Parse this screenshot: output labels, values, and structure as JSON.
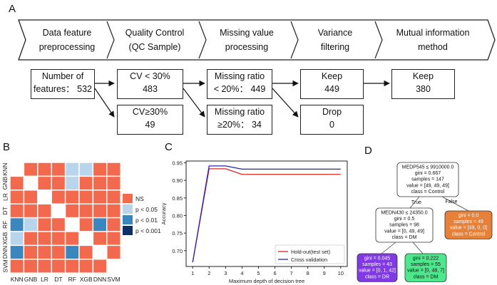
{
  "panel_labels": {
    "a": "A",
    "b": "B",
    "c": "C",
    "d": "D"
  },
  "panel_a": {
    "steps": [
      {
        "line1": "Data feature",
        "line2": "preprocessing"
      },
      {
        "line1": "Quality Control",
        "line2": "(QC Sample)"
      },
      {
        "line1": "Missing value",
        "line2": "processing"
      },
      {
        "line1": "Variance",
        "line2": "filtering"
      },
      {
        "line1": "Mutual information",
        "line2": "method"
      }
    ],
    "boxes": {
      "features": {
        "line1": "Number of",
        "line2": "features： 532"
      },
      "cv_low": {
        "line1": "CV < 30%",
        "line2": "483"
      },
      "cv_high": {
        "line1": "CV≥30%",
        "line2": "49"
      },
      "mr_low": {
        "line1": "Missing ratio",
        "line2": "< 20%： 449"
      },
      "mr_high": {
        "line1": "Missing ratio",
        "line2": "≥20%： 34"
      },
      "keep1": {
        "line1": "Keep",
        "line2": "449"
      },
      "drop": {
        "line1": "Drop",
        "line2": "0"
      },
      "keep2": {
        "line1": "Keep",
        "line2": "380"
      }
    }
  },
  "panel_b": {
    "models": [
      "KNN",
      "GNB",
      "LR",
      "DT",
      "RF",
      "XGB",
      "DNN",
      "SVM"
    ],
    "cells": [
      [
        "diag",
        "ns",
        "ns",
        "ns",
        "p05",
        "p05",
        "ns",
        "ns"
      ],
      [
        "ns",
        "diag",
        "ns",
        "ns",
        "p05",
        "ns",
        "ns",
        "ns"
      ],
      [
        "ns",
        "ns",
        "diag",
        "ns",
        "ns",
        "ns",
        "ns",
        "ns"
      ],
      [
        "ns",
        "ns",
        "ns",
        "diag",
        "ns",
        "ns",
        "ns",
        "ns"
      ],
      [
        "p01",
        "p05",
        "ns",
        "ns",
        "diag",
        "ns",
        "p01",
        "ns"
      ],
      [
        "p05",
        "ns",
        "ns",
        "ns",
        "ns",
        "diag",
        "ns",
        "ns"
      ],
      [
        "p01",
        "ns",
        "ns",
        "ns",
        "p01",
        "ns",
        "diag",
        "ns"
      ],
      [
        "ns",
        "ns",
        "ns",
        "ns",
        "ns",
        "ns",
        "ns",
        "diag"
      ]
    ],
    "legend": [
      {
        "key": "ns",
        "label": "NS",
        "color": "#f2694d"
      },
      {
        "key": "p05",
        "label": "p < 0.05",
        "color": "#b9d5ec"
      },
      {
        "key": "p01",
        "label": "p < 0.01",
        "color": "#3a87c0"
      },
      {
        "key": "p001",
        "label": "p < 0.001",
        "color": "#0b2f66"
      }
    ],
    "diag_color": "#ffffff"
  },
  "chart_data": {
    "type": "line",
    "xlabel": "Maximum depth of decision tree",
    "ylabel": "Accuracy",
    "x": [
      1,
      2,
      3,
      4,
      5,
      6,
      7,
      8,
      9,
      10
    ],
    "xticks": [
      "1",
      "2",
      "3",
      "4",
      "5",
      "6",
      "7",
      "8",
      "9",
      "10"
    ],
    "yticks": [
      "0.70",
      "0.75",
      "0.80",
      "0.85",
      "0.90",
      "0.95"
    ],
    "ylim": [
      0.655,
      0.955
    ],
    "xlim": [
      0.6,
      10.4
    ],
    "series": [
      {
        "name": "Hold-out(test set)",
        "color": "#d62728",
        "values": [
          0.667,
          0.933,
          0.933,
          0.917,
          0.917,
          0.917,
          0.917,
          0.917,
          0.917,
          0.917
        ]
      },
      {
        "name": "Cross validation",
        "color": "#2a24a8",
        "values": [
          0.667,
          0.941,
          0.941,
          0.932,
          0.932,
          0.932,
          0.932,
          0.932,
          0.932,
          0.932
        ]
      }
    ],
    "legend_position": "bottom-right"
  },
  "panel_d": {
    "root": [
      "MEDP545 ≤ 9910000.0",
      "gini = 0.667",
      "samples = 147",
      "value = [49, 49, 49]",
      "class = Control"
    ],
    "true_label": "True",
    "false_label": "False",
    "mid": [
      "MEDN430 ≤ 24350.0",
      "gini = 0.5",
      "samples = 98",
      "value = [0, 49, 49]",
      "class = DM"
    ],
    "right": [
      "gini = 0.0",
      "samples = 49",
      "value = [49, 0, 0]",
      "class = Control"
    ],
    "leaf_left": [
      "gini = 0.045",
      "samples = 43",
      "value = [0, 1, 42]",
      "class = DR"
    ],
    "leaf_right": [
      "gini = 0.222",
      "samples = 55",
      "value = [0, 48, 7]",
      "class = DM"
    ],
    "colors": {
      "root": "#ffffff",
      "mid": "#ffffff",
      "right": "#e58139",
      "leaf_left": "#8139e5",
      "leaf_right": "#4de88b"
    }
  }
}
